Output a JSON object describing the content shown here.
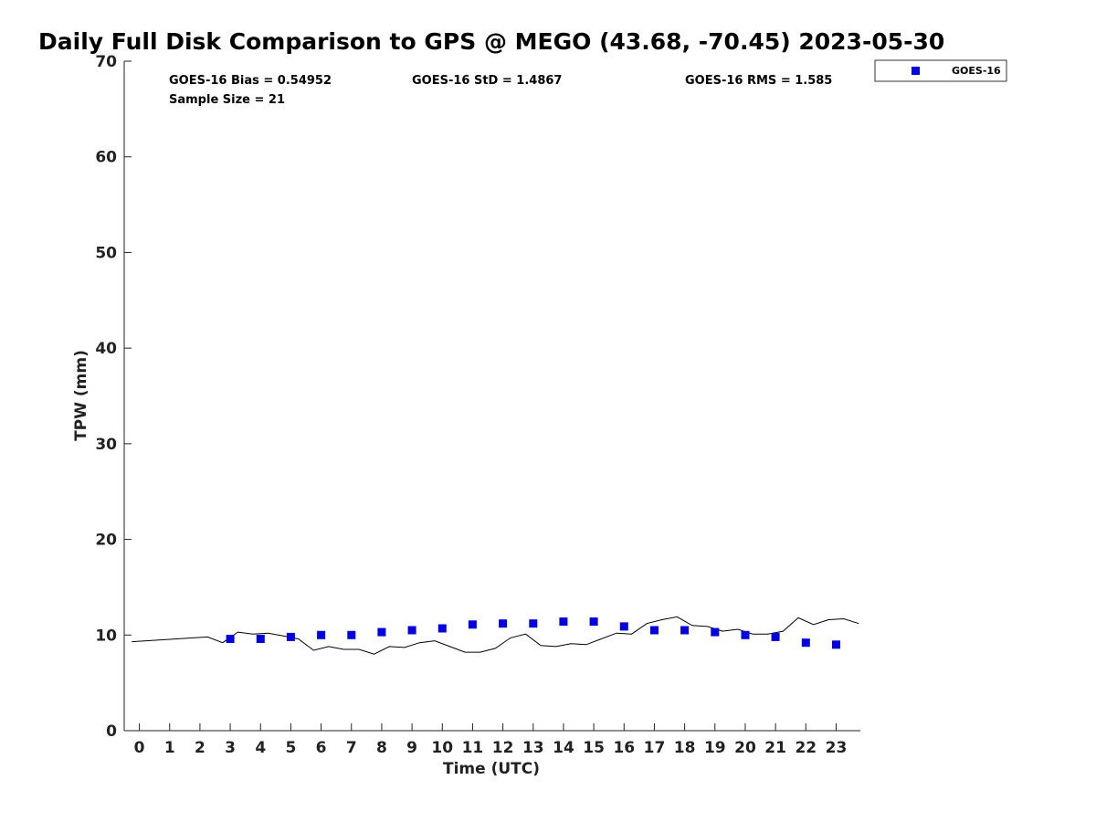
{
  "chart_data": {
    "type": "scatter",
    "title": "Daily Full Disk Comparison to GPS @ MEGO (43.68, -70.45) 2023-05-30",
    "xlabel": "Time (UTC)",
    "ylabel": "TPW (mm)",
    "xlim": [
      -0.5,
      23.8
    ],
    "ylim": [
      0,
      70
    ],
    "x_ticks": [
      0,
      1,
      2,
      3,
      4,
      5,
      6,
      7,
      8,
      9,
      10,
      11,
      12,
      13,
      14,
      15,
      16,
      17,
      18,
      19,
      20,
      21,
      22,
      23
    ],
    "y_ticks": [
      0,
      10,
      20,
      30,
      40,
      50,
      60,
      70
    ],
    "grid": false,
    "legend_position": "top-right, outside plot",
    "stats": {
      "bias": "GOES-16 Bias = 0.54952",
      "std": "GOES-16 StD = 1.4867",
      "rms": "GOES-16 RMS = 1.585",
      "sample_size": "Sample Size = 21"
    },
    "series": [
      {
        "name": "GOES-16",
        "style": "square-marker",
        "color": "#0000e0",
        "x": [
          3,
          4,
          5,
          6,
          7,
          8,
          9,
          10,
          11,
          12,
          13,
          14,
          15,
          16,
          17,
          18,
          19,
          20,
          21,
          22,
          23
        ],
        "y": [
          9.6,
          9.6,
          9.8,
          10.0,
          10.0,
          10.3,
          10.5,
          10.7,
          11.1,
          11.2,
          11.2,
          11.4,
          11.4,
          10.9,
          10.5,
          10.5,
          10.3,
          10.0,
          9.8,
          9.2,
          9.0
        ]
      },
      {
        "style": "line",
        "color": "#000000",
        "x": [
          -0.25,
          2.25,
          2.75,
          3.25,
          3.75,
          4.25,
          4.75,
          5.25,
          5.75,
          6.25,
          6.75,
          7.25,
          7.75,
          8.25,
          8.75,
          9.25,
          9.75,
          10.25,
          10.75,
          11.25,
          11.75,
          12.25,
          12.75,
          13.25,
          13.75,
          14.25,
          14.75,
          15.25,
          15.75,
          16.25,
          16.75,
          17.25,
          17.75,
          18.25,
          18.75,
          19.25,
          19.75,
          20.25,
          20.75,
          21.25,
          21.75,
          22.25,
          22.75,
          23.25,
          23.75
        ],
        "y": [
          9.3,
          9.8,
          9.2,
          10.3,
          10.1,
          10.2,
          9.9,
          9.6,
          8.4,
          8.8,
          8.5,
          8.5,
          8.0,
          8.8,
          8.7,
          9.2,
          9.4,
          8.8,
          8.2,
          8.2,
          8.6,
          9.7,
          10.1,
          8.9,
          8.8,
          9.1,
          9.0,
          9.6,
          10.2,
          10.1,
          11.2,
          11.6,
          11.9,
          11.0,
          10.9,
          10.4,
          10.6,
          10.1,
          10.1,
          10.4,
          11.8,
          11.1,
          11.6,
          11.7,
          11.2
        ]
      }
    ]
  }
}
